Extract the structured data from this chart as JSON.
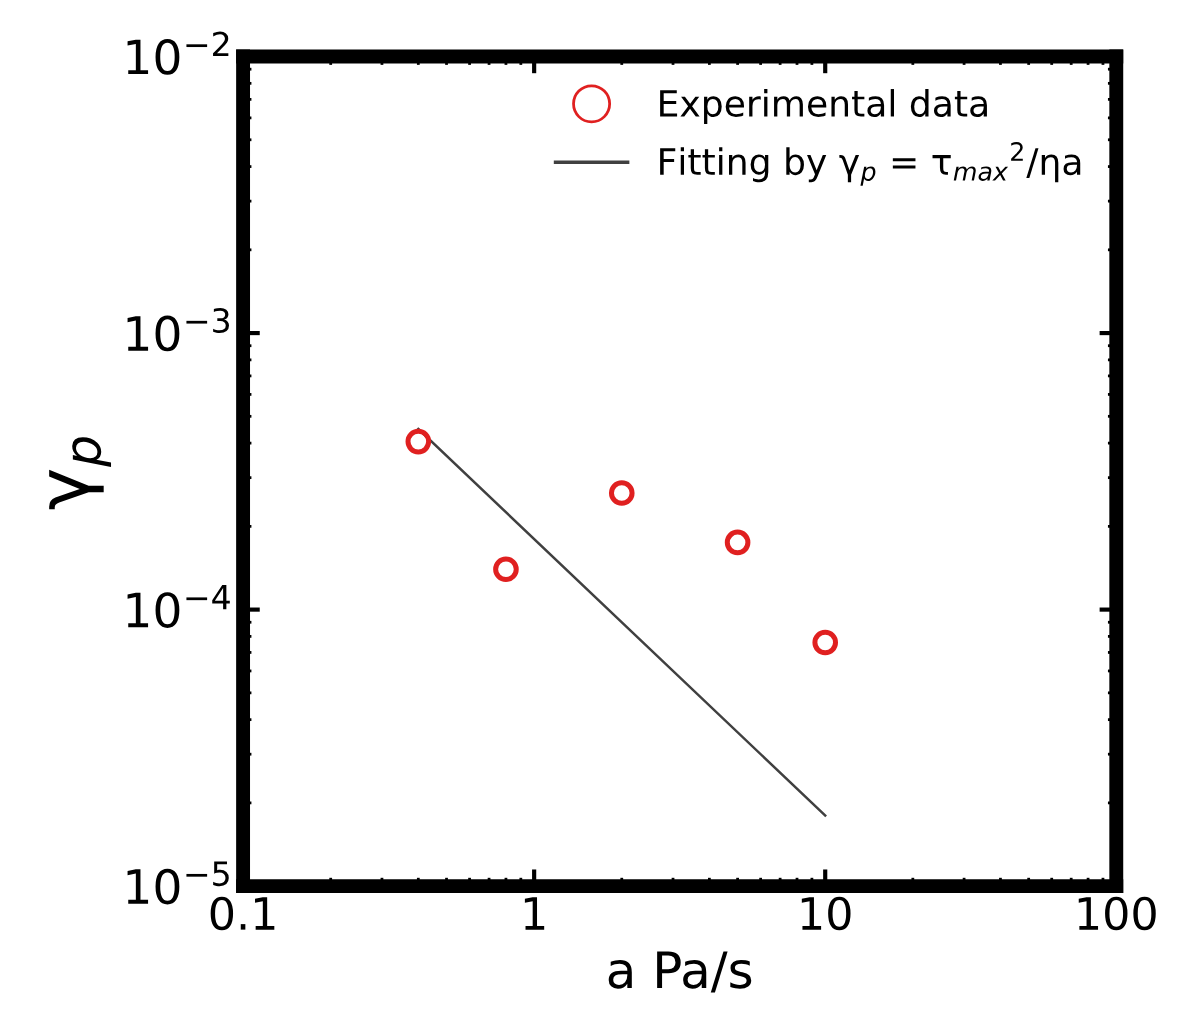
{
  "chart_data": {
    "type": "scatter",
    "xlabel": "a Pa/s",
    "ylabel": "γ$_{p}$",
    "log": "xy",
    "xlim": [
      0.1,
      100
    ],
    "xticks": [
      0.1,
      1,
      10,
      100
    ],
    "ylim": [
      1e-05,
      0.01
    ],
    "yticks": [
      {
        "value": 1e-05,
        "label": "10$^{−5}$"
      },
      {
        "value": 0.0001,
        "label": "10$^{−4}$"
      },
      {
        "value": 0.001,
        "label": "10$^{−3}$"
      },
      {
        "value": 0.01,
        "label": "10$^{−2}$"
      }
    ],
    "grid": false,
    "legend": "top right",
    "series": [
      {
        "name": "Experimental data",
        "marker": "circle",
        "color": "#e02020",
        "x": [
          0.4,
          0.8,
          2,
          5,
          10
        ],
        "values": [
          0.000405,
          0.00014,
          0.000264,
          0.000175,
          7.6e-05
        ]
      },
      {
        "name": "Fitting by γ$_{p}$ = τ$_{max}$$^{2}$/ηa",
        "type": "line",
        "marker": "none",
        "line_style": "solid",
        "color": "#404040",
        "x": [
          0.4,
          10
        ],
        "values": [
          0.00045,
          1.8e-05
        ]
      }
    ]
  }
}
